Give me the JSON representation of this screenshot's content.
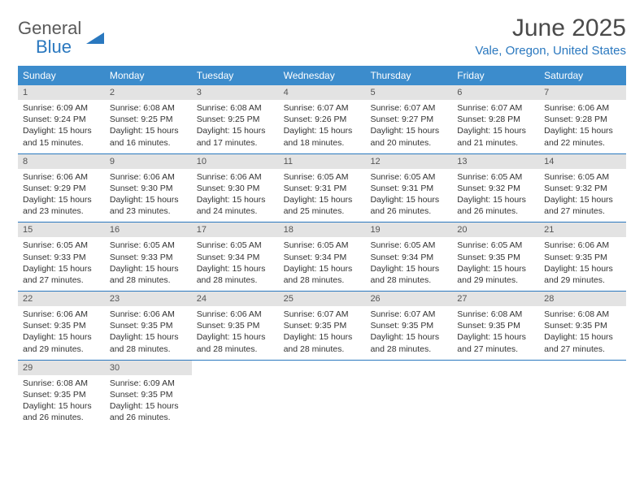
{
  "logo": {
    "text1": "General",
    "text2": "Blue"
  },
  "title": "June 2025",
  "location": "Vale, Oregon, United States",
  "colors": {
    "header_bg": "#3c8ccc",
    "accent": "#2a78bf",
    "daynum_bg": "#e3e3e3",
    "text": "#333333",
    "muted": "#5a5a5a"
  },
  "dow": [
    "Sunday",
    "Monday",
    "Tuesday",
    "Wednesday",
    "Thursday",
    "Friday",
    "Saturday"
  ],
  "days": [
    {
      "n": "1",
      "sr": "6:09 AM",
      "ss": "9:24 PM",
      "dl": "15 hours and 15 minutes."
    },
    {
      "n": "2",
      "sr": "6:08 AM",
      "ss": "9:25 PM",
      "dl": "15 hours and 16 minutes."
    },
    {
      "n": "3",
      "sr": "6:08 AM",
      "ss": "9:25 PM",
      "dl": "15 hours and 17 minutes."
    },
    {
      "n": "4",
      "sr": "6:07 AM",
      "ss": "9:26 PM",
      "dl": "15 hours and 18 minutes."
    },
    {
      "n": "5",
      "sr": "6:07 AM",
      "ss": "9:27 PM",
      "dl": "15 hours and 20 minutes."
    },
    {
      "n": "6",
      "sr": "6:07 AM",
      "ss": "9:28 PM",
      "dl": "15 hours and 21 minutes."
    },
    {
      "n": "7",
      "sr": "6:06 AM",
      "ss": "9:28 PM",
      "dl": "15 hours and 22 minutes."
    },
    {
      "n": "8",
      "sr": "6:06 AM",
      "ss": "9:29 PM",
      "dl": "15 hours and 23 minutes."
    },
    {
      "n": "9",
      "sr": "6:06 AM",
      "ss": "9:30 PM",
      "dl": "15 hours and 23 minutes."
    },
    {
      "n": "10",
      "sr": "6:06 AM",
      "ss": "9:30 PM",
      "dl": "15 hours and 24 minutes."
    },
    {
      "n": "11",
      "sr": "6:05 AM",
      "ss": "9:31 PM",
      "dl": "15 hours and 25 minutes."
    },
    {
      "n": "12",
      "sr": "6:05 AM",
      "ss": "9:31 PM",
      "dl": "15 hours and 26 minutes."
    },
    {
      "n": "13",
      "sr": "6:05 AM",
      "ss": "9:32 PM",
      "dl": "15 hours and 26 minutes."
    },
    {
      "n": "14",
      "sr": "6:05 AM",
      "ss": "9:32 PM",
      "dl": "15 hours and 27 minutes."
    },
    {
      "n": "15",
      "sr": "6:05 AM",
      "ss": "9:33 PM",
      "dl": "15 hours and 27 minutes."
    },
    {
      "n": "16",
      "sr": "6:05 AM",
      "ss": "9:33 PM",
      "dl": "15 hours and 28 minutes."
    },
    {
      "n": "17",
      "sr": "6:05 AM",
      "ss": "9:34 PM",
      "dl": "15 hours and 28 minutes."
    },
    {
      "n": "18",
      "sr": "6:05 AM",
      "ss": "9:34 PM",
      "dl": "15 hours and 28 minutes."
    },
    {
      "n": "19",
      "sr": "6:05 AM",
      "ss": "9:34 PM",
      "dl": "15 hours and 28 minutes."
    },
    {
      "n": "20",
      "sr": "6:05 AM",
      "ss": "9:35 PM",
      "dl": "15 hours and 29 minutes."
    },
    {
      "n": "21",
      "sr": "6:06 AM",
      "ss": "9:35 PM",
      "dl": "15 hours and 29 minutes."
    },
    {
      "n": "22",
      "sr": "6:06 AM",
      "ss": "9:35 PM",
      "dl": "15 hours and 29 minutes."
    },
    {
      "n": "23",
      "sr": "6:06 AM",
      "ss": "9:35 PM",
      "dl": "15 hours and 28 minutes."
    },
    {
      "n": "24",
      "sr": "6:06 AM",
      "ss": "9:35 PM",
      "dl": "15 hours and 28 minutes."
    },
    {
      "n": "25",
      "sr": "6:07 AM",
      "ss": "9:35 PM",
      "dl": "15 hours and 28 minutes."
    },
    {
      "n": "26",
      "sr": "6:07 AM",
      "ss": "9:35 PM",
      "dl": "15 hours and 28 minutes."
    },
    {
      "n": "27",
      "sr": "6:08 AM",
      "ss": "9:35 PM",
      "dl": "15 hours and 27 minutes."
    },
    {
      "n": "28",
      "sr": "6:08 AM",
      "ss": "9:35 PM",
      "dl": "15 hours and 27 minutes."
    },
    {
      "n": "29",
      "sr": "6:08 AM",
      "ss": "9:35 PM",
      "dl": "15 hours and 26 minutes."
    },
    {
      "n": "30",
      "sr": "6:09 AM",
      "ss": "9:35 PM",
      "dl": "15 hours and 26 minutes."
    }
  ],
  "labels": {
    "sunrise": "Sunrise:",
    "sunset": "Sunset:",
    "daylight": "Daylight:"
  },
  "layout": {
    "start_dow": 0,
    "cols": 7
  }
}
